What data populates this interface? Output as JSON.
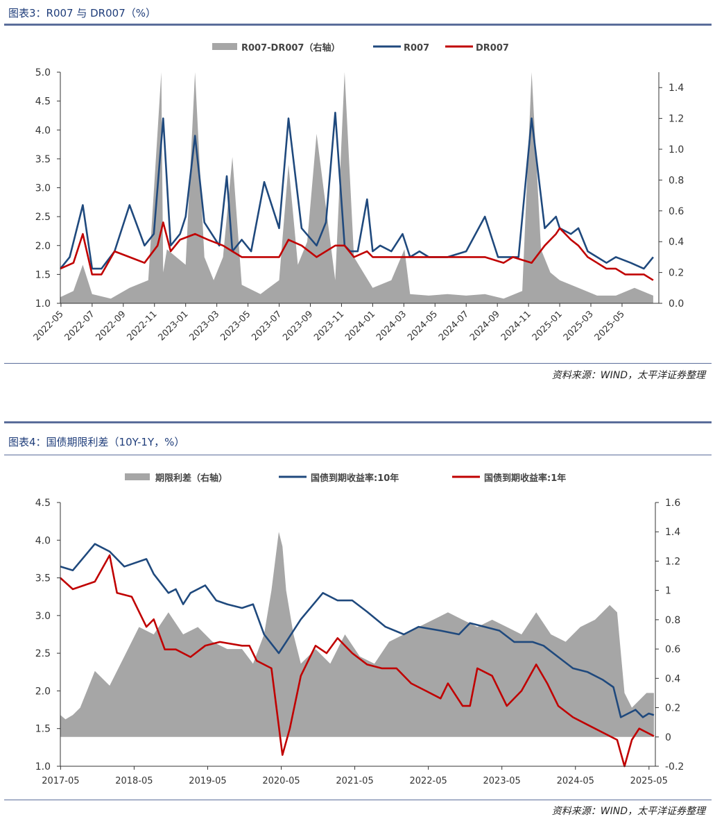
{
  "figure3": {
    "title": "图表3：R007 与 DR007（%）",
    "source": "资料来源：WIND，太平洋证券整理",
    "legend": {
      "bar": "R007-DR007（右轴）",
      "line1": "R007",
      "line2": "DR007"
    },
    "colors": {
      "bar": "#a6a6a6",
      "line1": "#1f497d",
      "line2": "#c00000"
    }
  },
  "figure4": {
    "title": "图表4：国债期限利差（10Y-1Y，%）",
    "source": "资料来源：WIND，太平洋证券整理",
    "legend": {
      "bar": "期限利差（右轴）",
      "line1": "国债到期收益率:10年",
      "line2": "国债到期收益率:1年"
    },
    "colors": {
      "bar": "#a6a6a6",
      "line1": "#1f497d",
      "line2": "#c00000"
    }
  },
  "chart_data": [
    {
      "type": "line",
      "title": "R007 与 DR007（%）",
      "ylim": [
        1.0,
        5.0
      ],
      "y2lim": [
        0.0,
        1.5
      ],
      "yticks": [
        "5.0",
        "4.5",
        "4.0",
        "3.5",
        "3.0",
        "2.5",
        "2.0",
        "1.5",
        "1.0"
      ],
      "y2ticks": [
        "1.4",
        "1.2",
        "1.0",
        "0.8",
        "0.6",
        "0.4",
        "0.2",
        "0.0"
      ],
      "xticks": [
        "2022-05",
        "2022-07",
        "2022-09",
        "2022-11",
        "2023-01",
        "2023-03",
        "2023-05",
        "2023-07",
        "2023-09",
        "2023-11",
        "2024-01",
        "2024-03",
        "2024-05",
        "2024-07",
        "2024-09",
        "2024-11",
        "2025-01",
        "2025-03",
        "2025-05"
      ],
      "series": [
        {
          "name": "R007",
          "axis": "left",
          "kind": "line",
          "x": [
            2022.33,
            2022.38,
            2022.45,
            2022.5,
            2022.55,
            2022.62,
            2022.7,
            2022.78,
            2022.83,
            2022.88,
            2022.92,
            2022.97,
            2023.0,
            2023.05,
            2023.1,
            2023.18,
            2023.22,
            2023.25,
            2023.3,
            2023.35,
            2023.42,
            2023.5,
            2023.55,
            2023.62,
            2023.7,
            2023.75,
            2023.8,
            2023.85,
            2023.88,
            2023.92,
            2023.97,
            2024.0,
            2024.04,
            2024.1,
            2024.16,
            2024.2,
            2024.25,
            2024.3,
            2024.4,
            2024.5,
            2024.6,
            2024.67,
            2024.72,
            2024.78,
            2024.85,
            2024.92,
            2024.98,
            2025.0,
            2025.06,
            2025.1,
            2025.15,
            2025.2,
            2025.25,
            2025.3,
            2025.38,
            2025.45,
            2025.5
          ],
          "values": [
            1.6,
            1.8,
            2.7,
            1.6,
            1.6,
            1.9,
            2.7,
            2.0,
            2.2,
            4.2,
            2.0,
            2.2,
            2.5,
            3.9,
            2.4,
            2.0,
            3.2,
            1.9,
            2.1,
            1.9,
            3.1,
            2.3,
            4.2,
            2.3,
            2.0,
            2.4,
            4.3,
            2.0,
            1.9,
            1.9,
            2.8,
            1.9,
            2.0,
            1.9,
            2.2,
            1.8,
            1.9,
            1.8,
            1.8,
            1.9,
            2.5,
            1.8,
            1.8,
            1.8,
            4.2,
            2.3,
            2.5,
            2.3,
            2.2,
            2.3,
            1.9,
            1.8,
            1.7,
            1.8,
            1.7,
            1.6,
            1.8
          ]
        },
        {
          "name": "DR007",
          "axis": "left",
          "kind": "line",
          "x": [
            2022.33,
            2022.4,
            2022.45,
            2022.5,
            2022.55,
            2022.62,
            2022.7,
            2022.78,
            2022.85,
            2022.88,
            2022.92,
            2022.97,
            2023.05,
            2023.12,
            2023.2,
            2023.25,
            2023.3,
            2023.4,
            2023.5,
            2023.55,
            2023.62,
            2023.7,
            2023.8,
            2023.85,
            2023.9,
            2023.97,
            2024.0,
            2024.05,
            2024.1,
            2024.2,
            2024.3,
            2024.4,
            2024.5,
            2024.6,
            2024.7,
            2024.75,
            2024.85,
            2024.92,
            2024.98,
            2025.0,
            2025.06,
            2025.1,
            2025.15,
            2025.2,
            2025.25,
            2025.3,
            2025.35,
            2025.4,
            2025.45,
            2025.5
          ],
          "values": [
            1.6,
            1.7,
            2.2,
            1.5,
            1.5,
            1.9,
            1.8,
            1.7,
            2.0,
            2.4,
            1.9,
            2.1,
            2.2,
            2.1,
            2.0,
            1.9,
            1.8,
            1.8,
            1.8,
            2.1,
            2.0,
            1.8,
            2.0,
            2.0,
            1.8,
            1.9,
            1.8,
            1.8,
            1.8,
            1.8,
            1.8,
            1.8,
            1.8,
            1.8,
            1.7,
            1.8,
            1.7,
            2.0,
            2.2,
            2.3,
            2.1,
            2.0,
            1.8,
            1.7,
            1.6,
            1.6,
            1.5,
            1.5,
            1.5,
            1.4
          ]
        },
        {
          "name": "R007-DR007（右轴）",
          "axis": "right",
          "kind": "area",
          "x": [
            2022.33,
            2022.4,
            2022.45,
            2022.5,
            2022.6,
            2022.7,
            2022.8,
            2022.87,
            2022.88,
            2022.9,
            2023.0,
            2023.05,
            2023.1,
            2023.15,
            2023.2,
            2023.25,
            2023.3,
            2023.4,
            2023.5,
            2023.55,
            2023.6,
            2023.65,
            2023.7,
            2023.8,
            2023.85,
            2023.9,
            2023.95,
            2024.0,
            2024.1,
            2024.17,
            2024.2,
            2024.3,
            2024.4,
            2024.5,
            2024.6,
            2024.7,
            2024.8,
            2024.85,
            2024.9,
            2024.95,
            2025.0,
            2025.1,
            2025.2,
            2025.3,
            2025.4,
            2025.5
          ],
          "values": [
            0.04,
            0.08,
            0.25,
            0.06,
            0.03,
            0.1,
            0.15,
            1.5,
            0.2,
            0.35,
            0.25,
            1.5,
            0.3,
            0.15,
            0.3,
            0.95,
            0.12,
            0.06,
            0.15,
            0.9,
            0.25,
            0.4,
            1.1,
            0.15,
            1.5,
            0.3,
            0.2,
            0.1,
            0.15,
            0.35,
            0.06,
            0.05,
            0.06,
            0.05,
            0.06,
            0.03,
            0.08,
            1.5,
            0.35,
            0.2,
            0.15,
            0.1,
            0.05,
            0.05,
            0.1,
            0.05
          ]
        }
      ]
    },
    {
      "type": "line",
      "title": "国债期限利差（10Y-1Y，%）",
      "ylim": [
        1.0,
        4.5
      ],
      "y2lim": [
        -0.2,
        1.6
      ],
      "yticks": [
        "4.5",
        "4.0",
        "3.5",
        "3.0",
        "2.5",
        "2.0",
        "1.5",
        "1.0"
      ],
      "y2ticks": [
        "1.6",
        "1.4",
        "1.2",
        "1",
        "0.8",
        "0.6",
        "0.4",
        "0.2",
        "0",
        "-0.2"
      ],
      "xticks": [
        "2017-05",
        "2018-05",
        "2019-05",
        "2020-05",
        "2021-05",
        "2022-05",
        "2023-05",
        "2024-05",
        "2025-05"
      ],
      "series": [
        {
          "name": "国债到期收益率:10年",
          "axis": "left",
          "kind": "line",
          "x": [
            2017.33,
            2017.5,
            2017.8,
            2018.0,
            2018.2,
            2018.5,
            2018.6,
            2018.8,
            2018.9,
            2019.0,
            2019.1,
            2019.3,
            2019.45,
            2019.6,
            2019.8,
            2019.95,
            2020.1,
            2020.3,
            2020.4,
            2020.6,
            2020.9,
            2021.1,
            2021.3,
            2021.5,
            2021.75,
            2022.0,
            2022.2,
            2022.5,
            2022.75,
            2022.9,
            2023.1,
            2023.3,
            2023.5,
            2023.75,
            2023.9,
            2024.1,
            2024.3,
            2024.5,
            2024.7,
            2024.85,
            2024.95,
            2025.05,
            2025.15,
            2025.25,
            2025.33,
            2025.4
          ],
          "values": [
            3.65,
            3.6,
            3.95,
            3.85,
            3.65,
            3.75,
            3.55,
            3.3,
            3.35,
            3.15,
            3.3,
            3.4,
            3.2,
            3.15,
            3.1,
            3.15,
            2.75,
            2.5,
            2.65,
            2.95,
            3.3,
            3.2,
            3.2,
            3.05,
            2.85,
            2.75,
            2.85,
            2.8,
            2.75,
            2.9,
            2.85,
            2.8,
            2.65,
            2.65,
            2.6,
            2.45,
            2.3,
            2.25,
            2.15,
            2.05,
            1.65,
            1.7,
            1.75,
            1.65,
            1.7,
            1.68
          ]
        },
        {
          "name": "国债到期收益率:1年",
          "axis": "left",
          "kind": "line",
          "x": [
            2017.33,
            2017.5,
            2017.8,
            2018.0,
            2018.1,
            2018.3,
            2018.5,
            2018.6,
            2018.75,
            2018.9,
            2019.1,
            2019.3,
            2019.5,
            2019.8,
            2019.9,
            2020.0,
            2020.2,
            2020.35,
            2020.45,
            2020.6,
            2020.8,
            2020.95,
            2021.1,
            2021.3,
            2021.5,
            2021.7,
            2021.9,
            2022.1,
            2022.3,
            2022.5,
            2022.6,
            2022.8,
            2022.9,
            2023.0,
            2023.2,
            2023.4,
            2023.6,
            2023.8,
            2023.95,
            2024.1,
            2024.3,
            2024.5,
            2024.7,
            2024.9,
            2025.0,
            2025.1,
            2025.2,
            2025.3,
            2025.4
          ],
          "values": [
            3.5,
            3.35,
            3.45,
            3.8,
            3.3,
            3.25,
            2.85,
            2.95,
            2.55,
            2.55,
            2.45,
            2.6,
            2.65,
            2.6,
            2.6,
            2.4,
            2.3,
            1.15,
            1.5,
            2.2,
            2.6,
            2.5,
            2.7,
            2.5,
            2.35,
            2.3,
            2.3,
            2.1,
            2.0,
            1.9,
            2.1,
            1.8,
            1.8,
            2.3,
            2.2,
            1.8,
            2.0,
            2.35,
            2.1,
            1.8,
            1.65,
            1.55,
            1.45,
            1.35,
            1.0,
            1.35,
            1.5,
            1.45,
            1.4
          ]
        },
        {
          "name": "期限利差（右轴）",
          "axis": "right",
          "kind": "area",
          "x": [
            2017.33,
            2017.4,
            2017.5,
            2017.6,
            2017.8,
            2018.0,
            2018.2,
            2018.4,
            2018.6,
            2018.8,
            2019.0,
            2019.2,
            2019.4,
            2019.6,
            2019.8,
            2019.95,
            2020.1,
            2020.2,
            2020.3,
            2020.35,
            2020.4,
            2020.5,
            2020.6,
            2020.8,
            2021.0,
            2021.2,
            2021.4,
            2021.6,
            2021.8,
            2022.0,
            2022.2,
            2022.4,
            2022.6,
            2022.8,
            2023.0,
            2023.2,
            2023.4,
            2023.6,
            2023.8,
            2024.0,
            2024.2,
            2024.4,
            2024.6,
            2024.8,
            2024.9,
            2025.0,
            2025.1,
            2025.2,
            2025.3,
            2025.4
          ],
          "values": [
            0.15,
            0.12,
            0.15,
            0.2,
            0.45,
            0.35,
            0.55,
            0.75,
            0.7,
            0.85,
            0.7,
            0.75,
            0.65,
            0.6,
            0.6,
            0.5,
            0.7,
            1.0,
            1.4,
            1.3,
            1.0,
            0.7,
            0.5,
            0.6,
            0.5,
            0.7,
            0.55,
            0.5,
            0.65,
            0.7,
            0.75,
            0.8,
            0.85,
            0.8,
            0.75,
            0.8,
            0.75,
            0.7,
            0.85,
            0.7,
            0.65,
            0.75,
            0.8,
            0.9,
            0.85,
            0.3,
            0.2,
            0.25,
            0.3,
            0.3
          ]
        }
      ]
    }
  ]
}
